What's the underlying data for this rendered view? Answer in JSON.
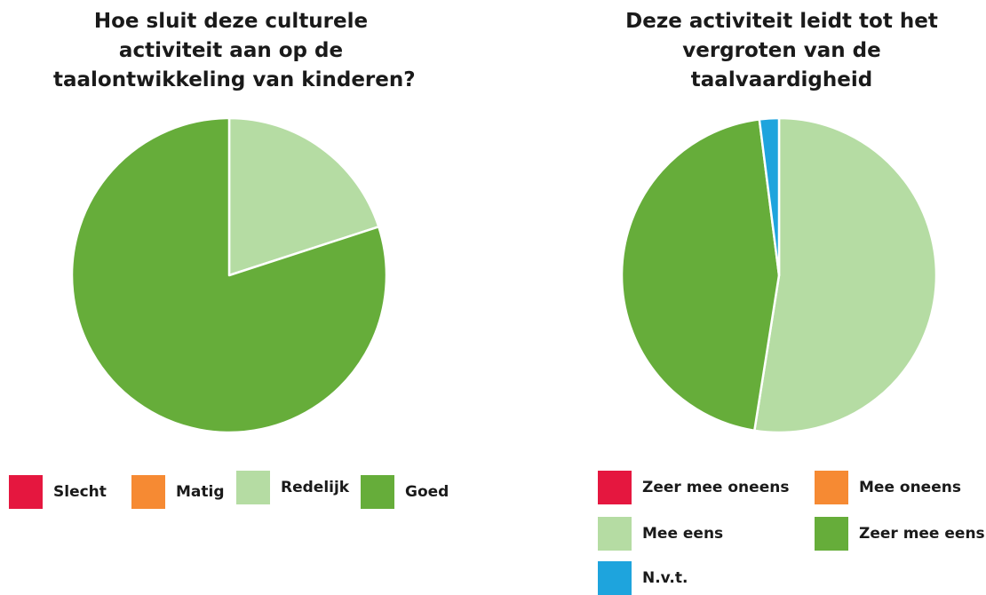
{
  "colors": {
    "red": "#e5173f",
    "orange": "#f68a33",
    "light_green": "#b5dca3",
    "green": "#66ad3a",
    "blue": "#1ea4dd"
  },
  "chart_data": [
    {
      "type": "pie",
      "title_lines": [
        "Hoe sluit deze culturele",
        "activiteit aan op de",
        "taalontwikkeling van kinderen?"
      ],
      "categories": [
        "Slecht",
        "Matig",
        "Redelijk",
        "Goed"
      ],
      "values": [
        0,
        0,
        20,
        80
      ],
      "colors": [
        "#e5173f",
        "#f68a33",
        "#b5dca3",
        "#66ad3a"
      ],
      "legend_position": "bottom"
    },
    {
      "type": "pie",
      "title_lines": [
        "Deze activiteit leidt tot het",
        "vergroten van de",
        "taalvaardigheid"
      ],
      "categories": [
        "Zeer mee oneens",
        "Mee oneens",
        "Mee eens",
        "Zeer mee eens",
        "N.v.t."
      ],
      "values": [
        0,
        0,
        52.5,
        45.5,
        2
      ],
      "colors": [
        "#e5173f",
        "#f68a33",
        "#b5dca3",
        "#66ad3a",
        "#1ea4dd"
      ],
      "legend_position": "bottom"
    }
  ]
}
